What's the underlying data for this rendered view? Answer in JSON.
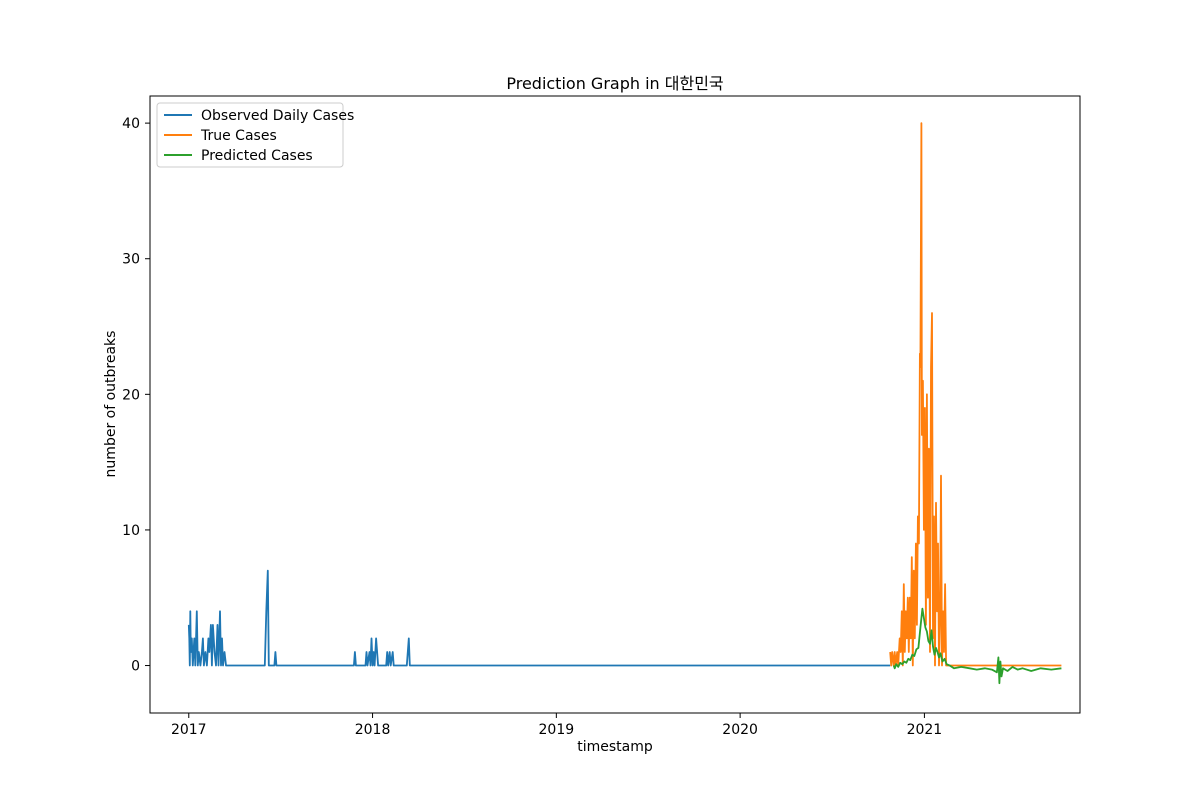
{
  "chart_data": {
    "type": "line",
    "title": "Prediction Graph in 대한민국",
    "xlabel": "timestamp",
    "ylabel": "number of outbreaks",
    "xlim": [
      "2016-10-16",
      "2021-11-06"
    ],
    "ylim": [
      -3.5,
      42
    ],
    "x_ticks": [
      "2017-01-01",
      "2018-01-01",
      "2019-01-01",
      "2020-01-01",
      "2021-01-01"
    ],
    "x_tick_labels": [
      "2017",
      "2018",
      "2019",
      "2020",
      "2021"
    ],
    "y_ticks": [
      0,
      10,
      20,
      30,
      40
    ],
    "y_tick_labels": [
      "0",
      "10",
      "20",
      "30",
      "40"
    ],
    "legend_position": "top-left",
    "grid": false,
    "series": [
      {
        "name": "Observed Daily Cases",
        "color": "#1f77b4",
        "points": [
          [
            "2017-01-01",
            3
          ],
          [
            "2017-01-02",
            2
          ],
          [
            "2017-01-03",
            0
          ],
          [
            "2017-01-04",
            4
          ],
          [
            "2017-01-05",
            1
          ],
          [
            "2017-01-07",
            2
          ],
          [
            "2017-01-09",
            0
          ],
          [
            "2017-01-12",
            2
          ],
          [
            "2017-01-14",
            0
          ],
          [
            "2017-01-17",
            4
          ],
          [
            "2017-01-19",
            0
          ],
          [
            "2017-01-21",
            1
          ],
          [
            "2017-01-24",
            0
          ],
          [
            "2017-01-27",
            1
          ],
          [
            "2017-01-29",
            2
          ],
          [
            "2017-01-31",
            0
          ],
          [
            "2017-02-03",
            1
          ],
          [
            "2017-02-06",
            0
          ],
          [
            "2017-02-09",
            2
          ],
          [
            "2017-02-11",
            1
          ],
          [
            "2017-02-14",
            3
          ],
          [
            "2017-02-16",
            0
          ],
          [
            "2017-02-18",
            3
          ],
          [
            "2017-02-21",
            1
          ],
          [
            "2017-02-24",
            0
          ],
          [
            "2017-02-27",
            3
          ],
          [
            "2017-03-01",
            0
          ],
          [
            "2017-03-04",
            4
          ],
          [
            "2017-03-06",
            0
          ],
          [
            "2017-03-08",
            2
          ],
          [
            "2017-03-10",
            0
          ],
          [
            "2017-03-13",
            1
          ],
          [
            "2017-03-16",
            0
          ],
          [
            "2017-03-17",
            0
          ],
          [
            "2017-06-01",
            0
          ],
          [
            "2017-06-04",
            4
          ],
          [
            "2017-06-07",
            7
          ],
          [
            "2017-06-09",
            0
          ],
          [
            "2017-06-20",
            0
          ],
          [
            "2017-06-22",
            1
          ],
          [
            "2017-06-24",
            0
          ],
          [
            "2017-11-25",
            0
          ],
          [
            "2017-11-27",
            1
          ],
          [
            "2017-11-29",
            0
          ],
          [
            "2017-12-18",
            0
          ],
          [
            "2017-12-20",
            1
          ],
          [
            "2017-12-22",
            0
          ],
          [
            "2017-12-26",
            1
          ],
          [
            "2017-12-28",
            0
          ],
          [
            "2017-12-30",
            2
          ],
          [
            "2018-01-01",
            0
          ],
          [
            "2018-01-03",
            1
          ],
          [
            "2018-01-05",
            0
          ],
          [
            "2018-01-08",
            2
          ],
          [
            "2018-01-10",
            1
          ],
          [
            "2018-01-12",
            0
          ],
          [
            "2018-01-28",
            0
          ],
          [
            "2018-01-30",
            1
          ],
          [
            "2018-02-01",
            0
          ],
          [
            "2018-02-04",
            1
          ],
          [
            "2018-02-06",
            0
          ],
          [
            "2018-02-10",
            1
          ],
          [
            "2018-02-12",
            0
          ],
          [
            "2018-03-10",
            0
          ],
          [
            "2018-03-12",
            1
          ],
          [
            "2018-03-14",
            2
          ],
          [
            "2018-03-16",
            0
          ],
          [
            "2020-10-25",
            0
          ]
        ]
      },
      {
        "name": "True Cases",
        "color": "#ff7f0e",
        "points": [
          [
            "2020-10-25",
            1
          ],
          [
            "2020-10-27",
            0
          ],
          [
            "2020-10-29",
            1
          ],
          [
            "2020-11-01",
            0
          ],
          [
            "2020-11-03",
            1
          ],
          [
            "2020-11-05",
            0
          ],
          [
            "2020-11-08",
            1
          ],
          [
            "2020-11-10",
            0
          ],
          [
            "2020-11-13",
            2
          ],
          [
            "2020-11-15",
            1
          ],
          [
            "2020-11-17",
            4
          ],
          [
            "2020-11-19",
            0
          ],
          [
            "2020-11-21",
            6
          ],
          [
            "2020-11-23",
            1
          ],
          [
            "2020-11-25",
            4
          ],
          [
            "2020-11-27",
            2
          ],
          [
            "2020-11-29",
            5
          ],
          [
            "2020-12-01",
            1
          ],
          [
            "2020-12-03",
            5
          ],
          [
            "2020-12-05",
            2
          ],
          [
            "2020-12-07",
            8
          ],
          [
            "2020-12-09",
            0
          ],
          [
            "2020-12-11",
            7
          ],
          [
            "2020-12-13",
            2
          ],
          [
            "2020-12-15",
            9
          ],
          [
            "2020-12-17",
            3
          ],
          [
            "2020-12-19",
            11
          ],
          [
            "2020-12-21",
            9
          ],
          [
            "2020-12-23",
            23
          ],
          [
            "2020-12-24",
            22
          ],
          [
            "2020-12-26",
            40
          ],
          [
            "2020-12-27",
            17
          ],
          [
            "2020-12-29",
            21
          ],
          [
            "2020-12-31",
            10
          ],
          [
            "2021-01-02",
            19
          ],
          [
            "2021-01-04",
            3
          ],
          [
            "2021-01-06",
            20
          ],
          [
            "2021-01-08",
            5
          ],
          [
            "2021-01-10",
            16
          ],
          [
            "2021-01-12",
            1
          ],
          [
            "2021-01-14",
            22
          ],
          [
            "2021-01-16",
            26
          ],
          [
            "2021-01-18",
            2
          ],
          [
            "2021-01-20",
            11
          ],
          [
            "2021-01-22",
            0
          ],
          [
            "2021-01-24",
            12
          ],
          [
            "2021-01-26",
            4
          ],
          [
            "2021-01-28",
            9
          ],
          [
            "2021-01-30",
            0
          ],
          [
            "2021-02-01",
            3
          ],
          [
            "2021-02-03",
            14
          ],
          [
            "2021-02-05",
            0
          ],
          [
            "2021-02-07",
            4
          ],
          [
            "2021-02-09",
            1
          ],
          [
            "2021-02-11",
            6
          ],
          [
            "2021-02-13",
            0
          ],
          [
            "2021-02-25",
            0
          ],
          [
            "2021-09-30",
            0
          ]
        ]
      },
      {
        "name": "Predicted Cases",
        "color": "#2ca02c",
        "points": [
          [
            "2020-11-01",
            0
          ],
          [
            "2020-11-03",
            -0.2
          ],
          [
            "2020-11-06",
            0.1
          ],
          [
            "2020-11-10",
            -0.1
          ],
          [
            "2020-11-14",
            0.2
          ],
          [
            "2020-11-18",
            0.1
          ],
          [
            "2020-11-22",
            0.3
          ],
          [
            "2020-11-26",
            0.2
          ],
          [
            "2020-11-30",
            0.5
          ],
          [
            "2020-12-04",
            0.4
          ],
          [
            "2020-12-08",
            0.8
          ],
          [
            "2020-12-12",
            0.7
          ],
          [
            "2020-12-16",
            1.2
          ],
          [
            "2020-12-20",
            1.3
          ],
          [
            "2020-12-24",
            2.8
          ],
          [
            "2020-12-28",
            4.2
          ],
          [
            "2020-12-31",
            3.5
          ],
          [
            "2021-01-03",
            2.8
          ],
          [
            "2021-01-06",
            2.5
          ],
          [
            "2021-01-09",
            1.8
          ],
          [
            "2021-01-12",
            1.6
          ],
          [
            "2021-01-15",
            2.6
          ],
          [
            "2021-01-18",
            1.4
          ],
          [
            "2021-01-21",
            0.8
          ],
          [
            "2021-01-24",
            1.3
          ],
          [
            "2021-01-27",
            1.0
          ],
          [
            "2021-01-30",
            0.6
          ],
          [
            "2021-02-02",
            0.9
          ],
          [
            "2021-02-06",
            0.3
          ],
          [
            "2021-02-10",
            0.5
          ],
          [
            "2021-02-14",
            0.1
          ],
          [
            "2021-02-20",
            0.0
          ],
          [
            "2021-03-01",
            -0.2
          ],
          [
            "2021-03-15",
            -0.1
          ],
          [
            "2021-04-01",
            -0.2
          ],
          [
            "2021-04-15",
            -0.3
          ],
          [
            "2021-05-01",
            -0.2
          ],
          [
            "2021-05-15",
            -0.3
          ],
          [
            "2021-05-25",
            -0.5
          ],
          [
            "2021-05-28",
            0.6
          ],
          [
            "2021-05-30",
            -1.3
          ],
          [
            "2021-06-01",
            0.3
          ],
          [
            "2021-06-03",
            -0.8
          ],
          [
            "2021-06-06",
            -0.2
          ],
          [
            "2021-06-15",
            -0.4
          ],
          [
            "2021-06-25",
            -0.1
          ],
          [
            "2021-07-05",
            -0.3
          ],
          [
            "2021-07-15",
            -0.2
          ],
          [
            "2021-08-01",
            -0.4
          ],
          [
            "2021-08-20",
            -0.2
          ],
          [
            "2021-09-10",
            -0.3
          ],
          [
            "2021-09-30",
            -0.2
          ]
        ]
      }
    ]
  }
}
